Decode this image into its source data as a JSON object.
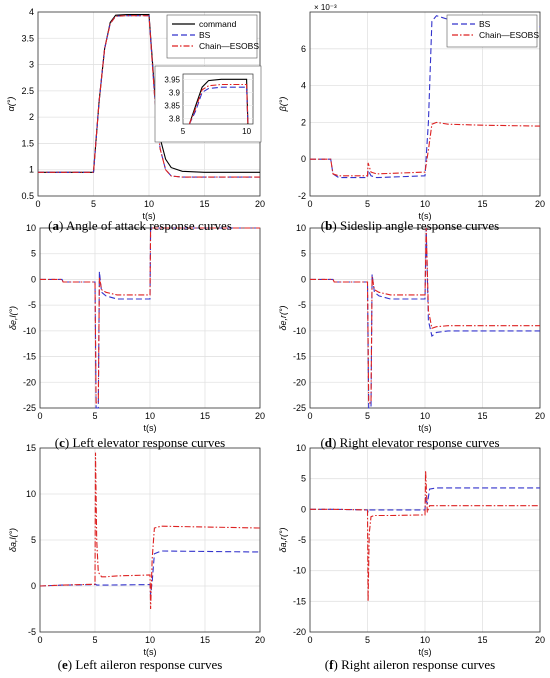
{
  "figure": {
    "captions": [
      {
        "letter": "a",
        "text": "Angle of attack response curves"
      },
      {
        "letter": "b",
        "text": "Sideslip angle response curves"
      },
      {
        "letter": "c",
        "text": "Left elevator response curves"
      },
      {
        "letter": "d",
        "text": "Right elevator response curves"
      },
      {
        "letter": "e",
        "text": "Left aileron response curves"
      },
      {
        "letter": "f",
        "text": "Right aileron response curves"
      }
    ]
  },
  "chart_data": [
    {
      "type": "line",
      "title": "",
      "xlabel": "t(s)",
      "ylabel": "α(°)",
      "xlim": [
        0,
        20
      ],
      "ylim": [
        0.5,
        4
      ],
      "xticks": [
        "0",
        "5",
        "10",
        "15",
        "20"
      ],
      "yticks": [
        "0.5",
        "1",
        "1.5",
        "2",
        "2.5",
        "3",
        "3.5",
        "4"
      ],
      "grid": true,
      "legend_position": "top-right",
      "legend": [
        "command",
        "BS",
        "Chain—ESOBS"
      ],
      "series": [
        {
          "name": "command",
          "color": "#000000",
          "style": "solid",
          "x": [
            0,
            5,
            5.5,
            6,
            6.5,
            7,
            8,
            10,
            10.5,
            11,
            11.5,
            12,
            13,
            15,
            20
          ],
          "y": [
            0.95,
            0.95,
            2.3,
            3.3,
            3.8,
            3.94,
            3.95,
            3.95,
            2.5,
            1.6,
            1.2,
            1.04,
            0.97,
            0.95,
            0.95
          ]
        },
        {
          "name": "BS",
          "color": "#3333cc",
          "style": "dashed",
          "x": [
            0,
            5,
            5.5,
            6,
            6.5,
            7,
            8,
            10,
            10.5,
            11,
            11.5,
            12,
            13,
            15,
            20
          ],
          "y": [
            0.95,
            0.95,
            2.3,
            3.3,
            3.78,
            3.92,
            3.93,
            3.93,
            2.4,
            1.4,
            1.0,
            0.88,
            0.86,
            0.86,
            0.86
          ]
        },
        {
          "name": "Chain—ESOBS",
          "color": "#dd2222",
          "style": "dashdot",
          "x": [
            0,
            5,
            5.5,
            6,
            6.5,
            7,
            8,
            10,
            10.5,
            11,
            11.5,
            12,
            13,
            15,
            20
          ],
          "y": [
            0.95,
            0.95,
            2.3,
            3.3,
            3.78,
            3.92,
            3.93,
            3.93,
            2.4,
            1.4,
            1.0,
            0.88,
            0.86,
            0.86,
            0.86
          ]
        }
      ],
      "inset": {
        "xlim": [
          5,
          10.5
        ],
        "ylim": [
          3.78,
          3.97
        ],
        "xticks": [
          "5",
          "10"
        ],
        "yticks": [
          "3.8",
          "3.85",
          "3.9",
          "3.95"
        ],
        "series": [
          {
            "name": "command",
            "x": [
              5.5,
              6,
              6.5,
              7,
              8,
              10,
              10.1
            ],
            "y": [
              3.78,
              3.85,
              3.92,
              3.945,
              3.95,
              3.95,
              3.78
            ]
          },
          {
            "name": "BS",
            "x": [
              5.5,
              6,
              6.5,
              7,
              8,
              10,
              10.1
            ],
            "y": [
              3.78,
              3.83,
              3.9,
              3.915,
              3.92,
              3.92,
              3.78
            ]
          },
          {
            "name": "Chain—ESOBS",
            "x": [
              5.5,
              6,
              6.5,
              7,
              8,
              10,
              10.1
            ],
            "y": [
              3.78,
              3.84,
              3.91,
              3.925,
              3.93,
              3.93,
              3.78
            ]
          }
        ]
      }
    },
    {
      "type": "line",
      "title": "",
      "xlabel": "t(s)",
      "ylabel": "β(°)",
      "exponent_label": "× 10⁻³",
      "xlim": [
        0,
        20
      ],
      "ylim": [
        -2,
        8
      ],
      "xticks": [
        "0",
        "5",
        "10",
        "15",
        "20"
      ],
      "yticks": [
        "-2",
        "0",
        "2",
        "4",
        "6"
      ],
      "grid": true,
      "legend_position": "top-right",
      "legend": [
        "BS",
        "Chain—ESOBS"
      ],
      "series": [
        {
          "name": "BS",
          "color": "#3333cc",
          "style": "dashed",
          "x": [
            0,
            1.8,
            2,
            2.5,
            5,
            5.05,
            5.3,
            5.8,
            10,
            10.3,
            10.6,
            11,
            12,
            15,
            20
          ],
          "y": [
            0,
            0,
            -0.8,
            -1.0,
            -1.0,
            -0.6,
            -0.9,
            -1.0,
            -0.9,
            2.0,
            7.5,
            7.8,
            7.6,
            7.4,
            7.2
          ]
        },
        {
          "name": "Chain—ESOBS",
          "color": "#dd2222",
          "style": "dashdot",
          "x": [
            0,
            1.8,
            2,
            2.5,
            5,
            5.05,
            5.3,
            5.8,
            10,
            10.3,
            10.6,
            11,
            12,
            15,
            20
          ],
          "y": [
            0,
            0,
            -0.8,
            -0.9,
            -0.9,
            -0.2,
            -0.7,
            -0.8,
            -0.7,
            0.5,
            1.9,
            2.0,
            1.9,
            1.85,
            1.8
          ]
        }
      ]
    },
    {
      "type": "line",
      "title": "",
      "xlabel": "t(s)",
      "ylabel": "δe,l(°)",
      "xlim": [
        0,
        20
      ],
      "ylim": [
        -25,
        10
      ],
      "xticks": [
        "0",
        "5",
        "10",
        "15",
        "20"
      ],
      "yticks": [
        "-25",
        "-20",
        "-15",
        "-10",
        "-5",
        "0",
        "5",
        "10"
      ],
      "grid": true,
      "series": [
        {
          "name": "BS",
          "color": "#3333cc",
          "style": "dashed",
          "x": [
            0,
            2,
            2.1,
            5,
            5.1,
            5.3,
            5.4,
            5.6,
            6,
            7,
            10,
            10.05,
            10.2,
            20
          ],
          "y": [
            0,
            0,
            -0.5,
            -0.5,
            -25,
            -25,
            1.5,
            -2.5,
            -3.2,
            -3.8,
            -3.8,
            10,
            10,
            10
          ]
        },
        {
          "name": "Chain—ESOBS",
          "color": "#dd2222",
          "style": "dashdot",
          "x": [
            0,
            2,
            2.1,
            5,
            5.1,
            5.3,
            5.4,
            5.6,
            6,
            7,
            10,
            10.05,
            10.2,
            20
          ],
          "y": [
            0,
            0,
            -0.5,
            -0.5,
            -24,
            -24,
            0.5,
            -2.0,
            -2.5,
            -3.0,
            -3.0,
            10,
            10,
            10
          ]
        }
      ]
    },
    {
      "type": "line",
      "title": "",
      "xlabel": "t(s)",
      "ylabel": "δe,r(°)",
      "xlim": [
        0,
        20
      ],
      "ylim": [
        -25,
        10
      ],
      "xticks": [
        "0",
        "5",
        "10",
        "15",
        "20"
      ],
      "yticks": [
        "-25",
        "-20",
        "-15",
        "-10",
        "-5",
        "0",
        "5",
        "10"
      ],
      "grid": true,
      "series": [
        {
          "name": "BS",
          "color": "#3333cc",
          "style": "dashed",
          "x": [
            0,
            2,
            2.1,
            5,
            5.1,
            5.3,
            5.4,
            5.6,
            6,
            7,
            10,
            10.1,
            10.3,
            10.6,
            11,
            12,
            20
          ],
          "y": [
            0,
            0,
            -0.5,
            -0.5,
            -25,
            -25,
            1.0,
            -2.5,
            -3.2,
            -3.8,
            -3.8,
            10,
            -8,
            -11,
            -10.3,
            -10,
            -10
          ]
        },
        {
          "name": "Chain—ESOBS",
          "color": "#dd2222",
          "style": "dashdot",
          "x": [
            0,
            2,
            2.1,
            5,
            5.1,
            5.3,
            5.4,
            5.6,
            6,
            7,
            10,
            10.1,
            10.3,
            10.6,
            11,
            12,
            20
          ],
          "y": [
            0,
            0,
            -0.5,
            -0.5,
            -24,
            -24,
            0.5,
            -2.0,
            -2.5,
            -3.0,
            -3.0,
            10,
            -6,
            -9.5,
            -9.2,
            -9,
            -9
          ]
        }
      ]
    },
    {
      "type": "line",
      "title": "",
      "xlabel": "t(s)",
      "ylabel": "δa,l(°)",
      "xlim": [
        0,
        20
      ],
      "ylim": [
        -5,
        15
      ],
      "xticks": [
        "0",
        "5",
        "10",
        "15",
        "20"
      ],
      "yticks": [
        "-5",
        "0",
        "5",
        "10",
        "15"
      ],
      "grid": true,
      "series": [
        {
          "name": "BS",
          "color": "#3333cc",
          "style": "dashed",
          "x": [
            0,
            2,
            5,
            5.05,
            5.15,
            5.3,
            5.5,
            10,
            10.05,
            10.2,
            10.4,
            11,
            20
          ],
          "y": [
            0,
            0.1,
            0.15,
            0.2,
            0.1,
            0.1,
            0.1,
            0.15,
            -1,
            0.5,
            3.5,
            3.8,
            3.7
          ]
        },
        {
          "name": "Chain—ESOBS",
          "color": "#dd2222",
          "style": "dashdot",
          "x": [
            0,
            2,
            5,
            5.05,
            5.15,
            5.3,
            5.6,
            6,
            7,
            10,
            10.05,
            10.2,
            10.4,
            11,
            20
          ],
          "y": [
            0,
            0.1,
            0.2,
            14.5,
            5,
            1.5,
            1.0,
            1.0,
            1.1,
            1.2,
            -2.5,
            3,
            6.3,
            6.5,
            6.3
          ]
        }
      ]
    },
    {
      "type": "line",
      "title": "",
      "xlabel": "t(s)",
      "ylabel": "δa,r(°)",
      "xlim": [
        0,
        20
      ],
      "ylim": [
        -20,
        10
      ],
      "xticks": [
        "0",
        "5",
        "10",
        "15",
        "20"
      ],
      "yticks": [
        "-20",
        "-15",
        "-10",
        "-5",
        "0",
        "5",
        "10"
      ],
      "grid": true,
      "series": [
        {
          "name": "BS",
          "color": "#3333cc",
          "style": "dashed",
          "x": [
            0,
            2,
            5,
            5.05,
            5.15,
            5.3,
            5.5,
            10,
            10.05,
            10.2,
            10.4,
            11,
            20
          ],
          "y": [
            0,
            0,
            -0.1,
            -0.5,
            -0.1,
            -0.1,
            -0.1,
            -0.1,
            2.0,
            0.8,
            3.3,
            3.5,
            3.5
          ]
        },
        {
          "name": "Chain—ESOBS",
          "color": "#dd2222",
          "style": "dashdot",
          "x": [
            0,
            2,
            5,
            5.05,
            5.15,
            5.3,
            5.6,
            6,
            7,
            10,
            10.05,
            10.2,
            10.4,
            11,
            20
          ],
          "y": [
            0,
            0,
            -0.1,
            -15,
            -4,
            -1.2,
            -1.0,
            -1.0,
            -1.0,
            -0.9,
            6.3,
            -0.5,
            0.6,
            0.6,
            0.6
          ]
        }
      ]
    }
  ]
}
